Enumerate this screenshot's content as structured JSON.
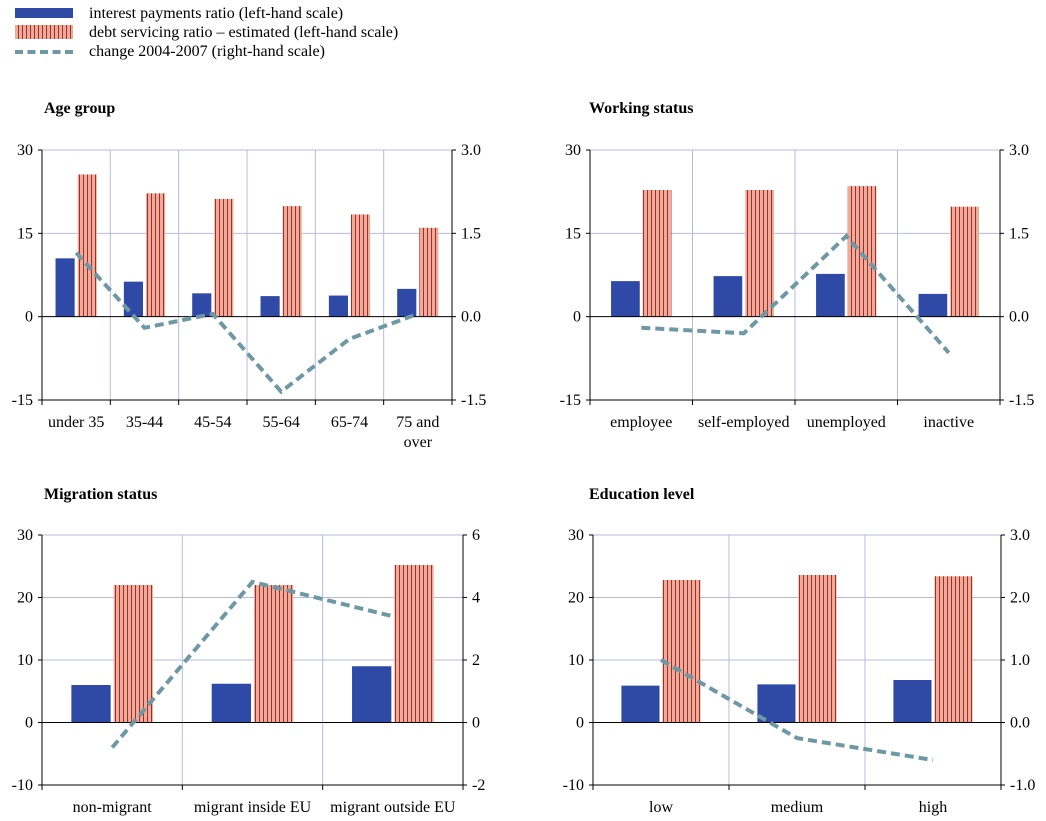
{
  "legend": {
    "interest_label": "interest payments ratio (left-hand scale)",
    "debt_label": "debt servicing ratio – estimated (left-hand scale)",
    "change_label": "change 2004-2007 (right-hand scale)"
  },
  "colors": {
    "interest": "#2f49a6",
    "debt_fill": "#e9ae98",
    "debt_stripe": "#b1262c",
    "change": "#6f98a5",
    "grid": "#b8b8e0"
  },
  "chart_data": [
    {
      "type": "bar",
      "title": "Age group",
      "categories": [
        [
          "under 35"
        ],
        [
          "35-44"
        ],
        [
          "45-54"
        ],
        [
          "55-64"
        ],
        [
          "65-74"
        ],
        [
          "75 and",
          "over"
        ]
      ],
      "series": [
        {
          "name": "interest payments ratio (left-hand scale)",
          "axis": "left",
          "kind": "bar",
          "values": [
            10.5,
            6.3,
            4.2,
            3.7,
            3.8,
            5.0
          ]
        },
        {
          "name": "debt servicing ratio – estimated (left-hand scale)",
          "axis": "left",
          "kind": "bar",
          "values": [
            25.6,
            22.2,
            21.2,
            19.9,
            18.4,
            16.0
          ]
        },
        {
          "name": "change 2004-2007 (right-hand scale)",
          "axis": "right",
          "kind": "line",
          "values": [
            1.15,
            -0.2,
            0.05,
            -1.35,
            -0.4,
            0.05
          ]
        }
      ],
      "ylim": [
        -15,
        30
      ],
      "yticks": [
        -15,
        0,
        15,
        30
      ],
      "y2lim": [
        -1.5,
        3.0
      ],
      "y2ticks": [
        "-1.5",
        "0.0",
        "1.5",
        "3.0"
      ]
    },
    {
      "type": "bar",
      "title": "Working status",
      "categories": [
        [
          "employee"
        ],
        [
          "self-employed"
        ],
        [
          "unemployed"
        ],
        [
          "inactive"
        ]
      ],
      "series": [
        {
          "name": "interest payments ratio (left-hand scale)",
          "axis": "left",
          "kind": "bar",
          "values": [
            6.4,
            7.3,
            7.7,
            4.1
          ]
        },
        {
          "name": "debt servicing ratio – estimated (left-hand scale)",
          "axis": "left",
          "kind": "bar",
          "values": [
            22.8,
            22.8,
            23.5,
            19.8
          ]
        },
        {
          "name": "change 2004-2007 (right-hand scale)",
          "axis": "right",
          "kind": "line",
          "values": [
            -0.2,
            -0.3,
            1.45,
            -0.65
          ]
        }
      ],
      "ylim": [
        -15,
        30
      ],
      "yticks": [
        -15,
        0,
        15,
        30
      ],
      "y2lim": [
        -1.5,
        3.0
      ],
      "y2ticks": [
        "-1.5",
        "0.0",
        "1.5",
        "3.0"
      ]
    },
    {
      "type": "bar",
      "title": "Migration status",
      "categories": [
        [
          "non-migrant"
        ],
        [
          "migrant inside EU"
        ],
        [
          "migrant outside EU"
        ]
      ],
      "series": [
        {
          "name": "interest payments ratio (left-hand scale)",
          "axis": "left",
          "kind": "bar",
          "values": [
            6.0,
            6.2,
            9.0
          ]
        },
        {
          "name": "debt servicing ratio – estimated (left-hand scale)",
          "axis": "left",
          "kind": "bar",
          "values": [
            22.0,
            22.0,
            25.2
          ]
        },
        {
          "name": "change 2004-2007 (right-hand scale)",
          "axis": "right",
          "kind": "line",
          "values": [
            -0.8,
            4.5,
            3.4
          ]
        }
      ],
      "ylim": [
        -10,
        30
      ],
      "yticks": [
        -10,
        0,
        10,
        20,
        30
      ],
      "y2lim": [
        -2,
        6
      ],
      "y2ticks": [
        "-2",
        "0",
        "2",
        "4",
        "6"
      ]
    },
    {
      "type": "bar",
      "title": "Education level",
      "categories": [
        [
          "low"
        ],
        [
          "medium"
        ],
        [
          "high"
        ]
      ],
      "series": [
        {
          "name": "interest payments ratio (left-hand scale)",
          "axis": "left",
          "kind": "bar",
          "values": [
            5.9,
            6.1,
            6.8
          ]
        },
        {
          "name": "debt servicing ratio – estimated (left-hand scale)",
          "axis": "left",
          "kind": "bar",
          "values": [
            22.8,
            23.6,
            23.4
          ]
        },
        {
          "name": "change 2004-2007 (right-hand scale)",
          "axis": "right",
          "kind": "line",
          "values": [
            1.0,
            -0.25,
            -0.6
          ]
        }
      ],
      "ylim": [
        -10,
        30
      ],
      "yticks": [
        -10,
        0,
        10,
        20,
        30
      ],
      "y2lim": [
        -1.0,
        3.0
      ],
      "y2ticks": [
        "-1.0",
        "0.0",
        "1.0",
        "2.0",
        "3.0"
      ]
    }
  ]
}
